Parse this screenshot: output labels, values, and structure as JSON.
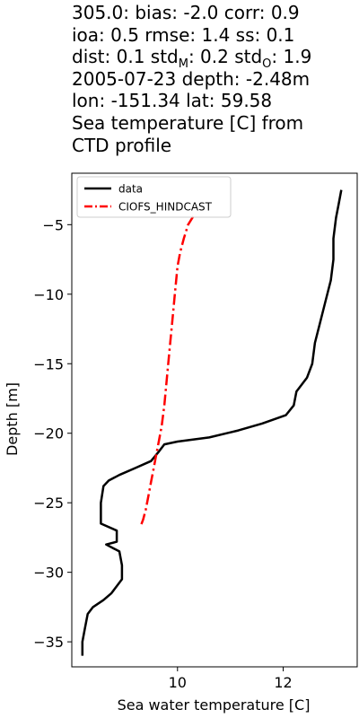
{
  "title_lines": [
    "305.0: bias: -2.0  corr: 0.9",
    "ioa: 0.5  rmse: 1.4  ss: 0.1",
    "dist: 0.1  std_M: 0.2  std_O: 1.9",
    "2005-07-23 depth: -2.48m",
    "lon: -151.34 lat: 59.58",
    "Sea temperature [C] from",
    "CTD profile"
  ],
  "chart_data": {
    "type": "line",
    "xlabel": "Sea water temperature [C]",
    "ylabel": "Depth [m]",
    "xlim": [
      8.0,
      13.4
    ],
    "ylim": [
      -36.8,
      -1.3
    ],
    "xticks": [
      10,
      12
    ],
    "yticks": [
      -5,
      -10,
      -15,
      -20,
      -25,
      -30,
      -35
    ],
    "legend_position": "upper-left",
    "series": [
      {
        "name": "data",
        "color": "#000000",
        "style": "solid",
        "points": [
          [
            13.1,
            -2.5
          ],
          [
            13.05,
            -3.5
          ],
          [
            13.0,
            -4.5
          ],
          [
            12.95,
            -6.0
          ],
          [
            12.95,
            -7.5
          ],
          [
            12.9,
            -9.0
          ],
          [
            12.8,
            -10.5
          ],
          [
            12.7,
            -12.0
          ],
          [
            12.6,
            -13.5
          ],
          [
            12.55,
            -15.0
          ],
          [
            12.45,
            -16.0
          ],
          [
            12.25,
            -17.0
          ],
          [
            12.2,
            -18.0
          ],
          [
            12.05,
            -18.7
          ],
          [
            11.6,
            -19.3
          ],
          [
            11.15,
            -19.8
          ],
          [
            10.6,
            -20.3
          ],
          [
            10.0,
            -20.6
          ],
          [
            9.75,
            -20.8
          ],
          [
            9.65,
            -21.3
          ],
          [
            9.5,
            -22.0
          ],
          [
            9.2,
            -22.5
          ],
          [
            8.9,
            -23.0
          ],
          [
            8.7,
            -23.4
          ],
          [
            8.6,
            -23.8
          ],
          [
            8.55,
            -25.0
          ],
          [
            8.55,
            -26.5
          ],
          [
            8.85,
            -27.0
          ],
          [
            8.85,
            -27.8
          ],
          [
            8.65,
            -28.0
          ],
          [
            8.9,
            -28.5
          ],
          [
            8.95,
            -29.5
          ],
          [
            8.95,
            -30.5
          ],
          [
            8.75,
            -31.5
          ],
          [
            8.6,
            -32.0
          ],
          [
            8.4,
            -32.5
          ],
          [
            8.3,
            -33.0
          ],
          [
            8.25,
            -34.0
          ],
          [
            8.2,
            -35.0
          ],
          [
            8.2,
            -36.0
          ]
        ]
      },
      {
        "name": "CIOFS_HINDCAST",
        "color": "#ff0000",
        "style": "dashdot",
        "points": [
          [
            10.3,
            -4.4
          ],
          [
            10.2,
            -5.0
          ],
          [
            10.12,
            -6.0
          ],
          [
            10.05,
            -7.0
          ],
          [
            10.0,
            -8.0
          ],
          [
            9.95,
            -10.0
          ],
          [
            9.9,
            -12.0
          ],
          [
            9.85,
            -14.0
          ],
          [
            9.8,
            -16.0
          ],
          [
            9.75,
            -18.0
          ],
          [
            9.7,
            -19.5
          ],
          [
            9.65,
            -20.5
          ],
          [
            9.6,
            -21.5
          ],
          [
            9.55,
            -22.5
          ],
          [
            9.5,
            -23.5
          ],
          [
            9.45,
            -24.5
          ],
          [
            9.4,
            -25.5
          ],
          [
            9.35,
            -26.2
          ],
          [
            9.3,
            -26.7
          ]
        ]
      }
    ]
  }
}
